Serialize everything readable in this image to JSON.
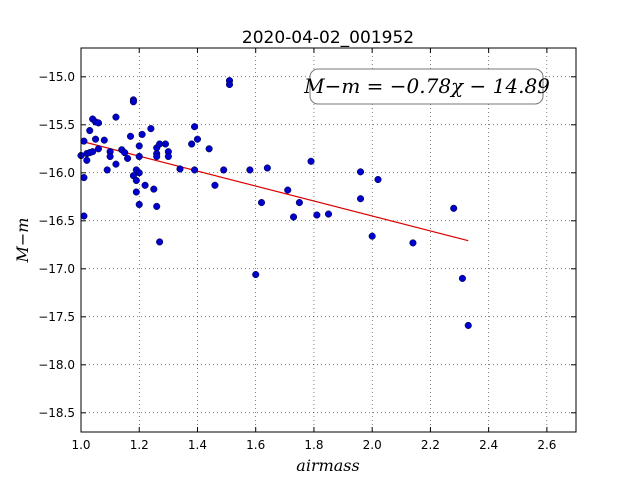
{
  "chart_data": {
    "type": "scatter",
    "title": "2020-04-02_001952",
    "xlabel": "airmass",
    "ylabel": "M−m",
    "xlim": [
      1.0,
      2.7
    ],
    "ylim": [
      -18.7,
      -14.7
    ],
    "y_inverted": true,
    "xticks": [
      1.0,
      1.2,
      1.4,
      1.6,
      1.8,
      2.0,
      2.2,
      2.4,
      2.6
    ],
    "xtick_labels": [
      "1.0",
      "1.2",
      "1.4",
      "1.6",
      "1.8",
      "2.0",
      "2.2",
      "2.4",
      "2.6"
    ],
    "yticks": [
      -15.0,
      -15.5,
      -16.0,
      -16.5,
      -17.0,
      -17.5,
      -18.0,
      -18.5
    ],
    "ytick_labels": [
      "−15.0",
      "−15.5",
      "−16.0",
      "−16.5",
      "−17.0",
      "−17.5",
      "−18.0",
      "−18.5"
    ],
    "grid": true,
    "annotation": "M−m = −0.78χ − 14.89",
    "annotation_placement": "top-right",
    "point_color": "#0000cc",
    "fit_color": "#dd0000",
    "fit": {
      "slope": -0.78,
      "intercept": -14.89,
      "x_range": [
        1.0,
        2.33
      ]
    },
    "points": [
      [
        1.0,
        -15.82
      ],
      [
        1.01,
        -15.67
      ],
      [
        1.01,
        -16.05
      ],
      [
        1.01,
        -16.45
      ],
      [
        1.02,
        -15.87
      ],
      [
        1.02,
        -15.8
      ],
      [
        1.03,
        -15.56
      ],
      [
        1.03,
        -15.79
      ],
      [
        1.04,
        -15.78
      ],
      [
        1.04,
        -15.44
      ],
      [
        1.05,
        -15.47
      ],
      [
        1.05,
        -15.65
      ],
      [
        1.06,
        -15.48
      ],
      [
        1.06,
        -15.75
      ],
      [
        1.08,
        -15.66
      ],
      [
        1.09,
        -15.97
      ],
      [
        1.1,
        -15.78
      ],
      [
        1.1,
        -15.83
      ],
      [
        1.12,
        -15.42
      ],
      [
        1.12,
        -15.91
      ],
      [
        1.14,
        -15.76
      ],
      [
        1.15,
        -15.79
      ],
      [
        1.16,
        -15.85
      ],
      [
        1.17,
        -15.62
      ],
      [
        1.18,
        -15.24
      ],
      [
        1.18,
        -15.26
      ],
      [
        1.18,
        -16.03
      ],
      [
        1.19,
        -16.08
      ],
      [
        1.19,
        -15.97
      ],
      [
        1.19,
        -16.2
      ],
      [
        1.2,
        -16.0
      ],
      [
        1.2,
        -15.72
      ],
      [
        1.2,
        -15.83
      ],
      [
        1.2,
        -16.33
      ],
      [
        1.21,
        -15.6
      ],
      [
        1.22,
        -16.13
      ],
      [
        1.24,
        -15.54
      ],
      [
        1.25,
        -16.17
      ],
      [
        1.26,
        -15.74
      ],
      [
        1.26,
        -15.8
      ],
      [
        1.26,
        -15.83
      ],
      [
        1.26,
        -16.35
      ],
      [
        1.27,
        -15.7
      ],
      [
        1.27,
        -16.72
      ],
      [
        1.29,
        -15.7
      ],
      [
        1.3,
        -15.78
      ],
      [
        1.3,
        -15.83
      ],
      [
        1.34,
        -15.96
      ],
      [
        1.38,
        -15.7
      ],
      [
        1.39,
        -15.52
      ],
      [
        1.39,
        -15.97
      ],
      [
        1.4,
        -15.65
      ],
      [
        1.44,
        -15.75
      ],
      [
        1.46,
        -16.13
      ],
      [
        1.49,
        -15.97
      ],
      [
        1.51,
        -15.04
      ],
      [
        1.51,
        -15.08
      ],
      [
        1.58,
        -15.97
      ],
      [
        1.6,
        -17.06
      ],
      [
        1.62,
        -16.31
      ],
      [
        1.64,
        -15.95
      ],
      [
        1.71,
        -16.18
      ],
      [
        1.73,
        -16.46
      ],
      [
        1.75,
        -16.31
      ],
      [
        1.79,
        -15.88
      ],
      [
        1.81,
        -16.44
      ],
      [
        1.85,
        -16.43
      ],
      [
        1.96,
        -15.99
      ],
      [
        1.96,
        -16.27
      ],
      [
        2.0,
        -16.66
      ],
      [
        2.02,
        -16.07
      ],
      [
        2.14,
        -16.73
      ],
      [
        2.28,
        -16.37
      ],
      [
        2.31,
        -17.1
      ],
      [
        2.33,
        -17.59
      ]
    ]
  }
}
